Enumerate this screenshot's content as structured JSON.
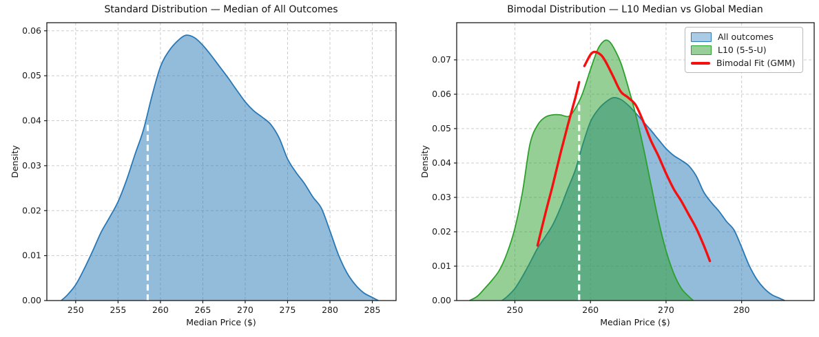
{
  "chart_data": [
    {
      "type": "area",
      "title": "Standard Distribution — Median of All Outcomes",
      "xlabel": "Median Price ($)",
      "ylabel": "Density",
      "xlim": [
        246.6,
        287.8
      ],
      "ylim": [
        0,
        0.0618
      ],
      "xticks": [
        250,
        255,
        260,
        265,
        270,
        275,
        280,
        285
      ],
      "yticks": [
        0.0,
        0.01,
        0.02,
        0.03,
        0.04,
        0.05,
        0.06
      ],
      "grid": true,
      "grid_color": "#cccccc",
      "series": [
        {
          "name": "All outcomes",
          "kind": "area",
          "color": "#2878b5",
          "fill_opacity": 0.5,
          "points": [
            [
              248.3,
              0
            ],
            [
              249,
              0.0012
            ],
            [
              250,
              0.0035
            ],
            [
              251,
              0.007
            ],
            [
              252,
              0.011
            ],
            [
              253,
              0.0152
            ],
            [
              254,
              0.0185
            ],
            [
              255,
              0.022
            ],
            [
              256,
              0.0268
            ],
            [
              257,
              0.0325
            ],
            [
              258,
              0.038
            ],
            [
              259,
              0.0455
            ],
            [
              260,
              0.052
            ],
            [
              261,
              0.0555
            ],
            [
              262,
              0.0577
            ],
            [
              263,
              0.059
            ],
            [
              264,
              0.0585
            ],
            [
              265,
              0.0568
            ],
            [
              266,
              0.0545
            ],
            [
              267,
              0.052
            ],
            [
              268,
              0.0495
            ],
            [
              269,
              0.0468
            ],
            [
              270,
              0.0442
            ],
            [
              271,
              0.0422
            ],
            [
              272,
              0.0408
            ],
            [
              273,
              0.0392
            ],
            [
              274,
              0.0362
            ],
            [
              275,
              0.0315
            ],
            [
              276,
              0.0285
            ],
            [
              277,
              0.026
            ],
            [
              278,
              0.023
            ],
            [
              279,
              0.0205
            ],
            [
              280,
              0.0155
            ],
            [
              281,
              0.0102
            ],
            [
              282,
              0.0062
            ],
            [
              283,
              0.0035
            ],
            [
              284,
              0.0017
            ],
            [
              285,
              0.0007
            ],
            [
              285.7,
              0
            ]
          ]
        }
      ],
      "median_line": {
        "x": 258.5,
        "y_top": 0.0392,
        "color": "#ffffff",
        "style": "dashed"
      }
    },
    {
      "type": "area",
      "title": "Bimodal Distribution — L10 Median vs Global Median",
      "xlabel": "Median Price ($)",
      "ylabel": "Density",
      "xlim": [
        242.3,
        289.6
      ],
      "ylim": [
        0,
        0.0808
      ],
      "xticks": [
        250,
        260,
        270,
        280
      ],
      "yticks": [
        0.0,
        0.01,
        0.02,
        0.03,
        0.04,
        0.05,
        0.06,
        0.07
      ],
      "grid": true,
      "grid_color": "#cccccc",
      "series": [
        {
          "name": "All outcomes",
          "kind": "area",
          "color": "#2878b5",
          "fill_opacity": 0.5,
          "points": [
            [
              248.3,
              0
            ],
            [
              249,
              0.0012
            ],
            [
              250,
              0.0035
            ],
            [
              251,
              0.007
            ],
            [
              252,
              0.011
            ],
            [
              253,
              0.0152
            ],
            [
              254,
              0.0185
            ],
            [
              255,
              0.022
            ],
            [
              256,
              0.0268
            ],
            [
              257,
              0.0325
            ],
            [
              258,
              0.038
            ],
            [
              259,
              0.0455
            ],
            [
              260,
              0.052
            ],
            [
              261,
              0.0555
            ],
            [
              262,
              0.0577
            ],
            [
              263,
              0.059
            ],
            [
              264,
              0.0585
            ],
            [
              265,
              0.0568
            ],
            [
              266,
              0.0545
            ],
            [
              267,
              0.052
            ],
            [
              268,
              0.0495
            ],
            [
              269,
              0.0468
            ],
            [
              270,
              0.0442
            ],
            [
              271,
              0.0422
            ],
            [
              272,
              0.0408
            ],
            [
              273,
              0.0392
            ],
            [
              274,
              0.0362
            ],
            [
              275,
              0.0315
            ],
            [
              276,
              0.0285
            ],
            [
              277,
              0.026
            ],
            [
              278,
              0.023
            ],
            [
              279,
              0.0205
            ],
            [
              280,
              0.0155
            ],
            [
              281,
              0.0102
            ],
            [
              282,
              0.0062
            ],
            [
              283,
              0.0035
            ],
            [
              284,
              0.0017
            ],
            [
              285,
              0.0007
            ],
            [
              285.7,
              0
            ]
          ]
        },
        {
          "name": "L10 (5-5-U)",
          "kind": "area",
          "color": "#2ca02c",
          "fill_opacity": 0.5,
          "points": [
            [
              244,
              0
            ],
            [
              245,
              0.0012
            ],
            [
              246,
              0.0035
            ],
            [
              247,
              0.006
            ],
            [
              248,
              0.009
            ],
            [
              249,
              0.014
            ],
            [
              250,
              0.021
            ],
            [
              251,
              0.0315
            ],
            [
              252,
              0.0455
            ],
            [
              253,
              0.051
            ],
            [
              254,
              0.0533
            ],
            [
              255,
              0.054
            ],
            [
              256,
              0.054
            ],
            [
              257,
              0.0535
            ],
            [
              257.6,
              0.0545
            ],
            [
              258.4,
              0.0575
            ],
            [
              259,
              0.0605
            ],
            [
              260,
              0.0672
            ],
            [
              261,
              0.0732
            ],
            [
              261.8,
              0.0755
            ],
            [
              262.4,
              0.0755
            ],
            [
              263,
              0.0738
            ],
            [
              264,
              0.0692
            ],
            [
              265,
              0.062
            ],
            [
              266,
              0.054
            ],
            [
              267,
              0.0445
            ],
            [
              268,
              0.0338
            ],
            [
              269,
              0.0232
            ],
            [
              270,
              0.0145
            ],
            [
              271,
              0.008
            ],
            [
              272,
              0.0036
            ],
            [
              273,
              0.0012
            ],
            [
              273.6,
              0
            ]
          ]
        },
        {
          "name": "Bimodal Fit (GMM)",
          "kind": "line",
          "color": "#f50f0f",
          "width": 3.4,
          "segments": [
            [
              [
                253,
                0.016
              ],
              [
                254,
                0.025
              ],
              [
                255,
                0.0335
              ],
              [
                256,
                0.0425
              ],
              [
                257,
                0.051
              ],
              [
                258,
                0.059
              ],
              [
                258.5,
                0.0635
              ]
            ],
            [
              [
                259.2,
                0.0682
              ],
              [
                260,
                0.0715
              ],
              [
                260.6,
                0.0723
              ],
              [
                261.4,
                0.0714
              ],
              [
                262,
                0.0695
              ],
              [
                263,
                0.0652
              ],
              [
                264,
                0.0608
              ],
              [
                265,
                0.059
              ],
              [
                266,
                0.0568
              ],
              [
                267,
                0.052
              ],
              [
                268,
                0.0465
              ],
              [
                269,
                0.042
              ],
              [
                270,
                0.037
              ],
              [
                271,
                0.0325
              ],
              [
                272,
                0.029
              ],
              [
                273,
                0.025
              ],
              [
                274,
                0.021
              ],
              [
                275,
                0.016
              ],
              [
                275.8,
                0.0115
              ]
            ]
          ]
        }
      ],
      "median_line": {
        "x": 258.5,
        "y_top": 0.0578,
        "color": "#ffffff",
        "style": "dashed"
      },
      "legend": {
        "position": "upper right",
        "entries": [
          {
            "label": "All outcomes",
            "swatch": "patch",
            "fill": "#a9cbe5",
            "border": "#2878b5"
          },
          {
            "label": "L10 (5-5-U)",
            "swatch": "patch",
            "fill": "#98cf98",
            "border": "#2ca02c"
          },
          {
            "label": "Bimodal Fit (GMM)",
            "swatch": "line",
            "color": "#f50f0f"
          }
        ]
      }
    }
  ]
}
